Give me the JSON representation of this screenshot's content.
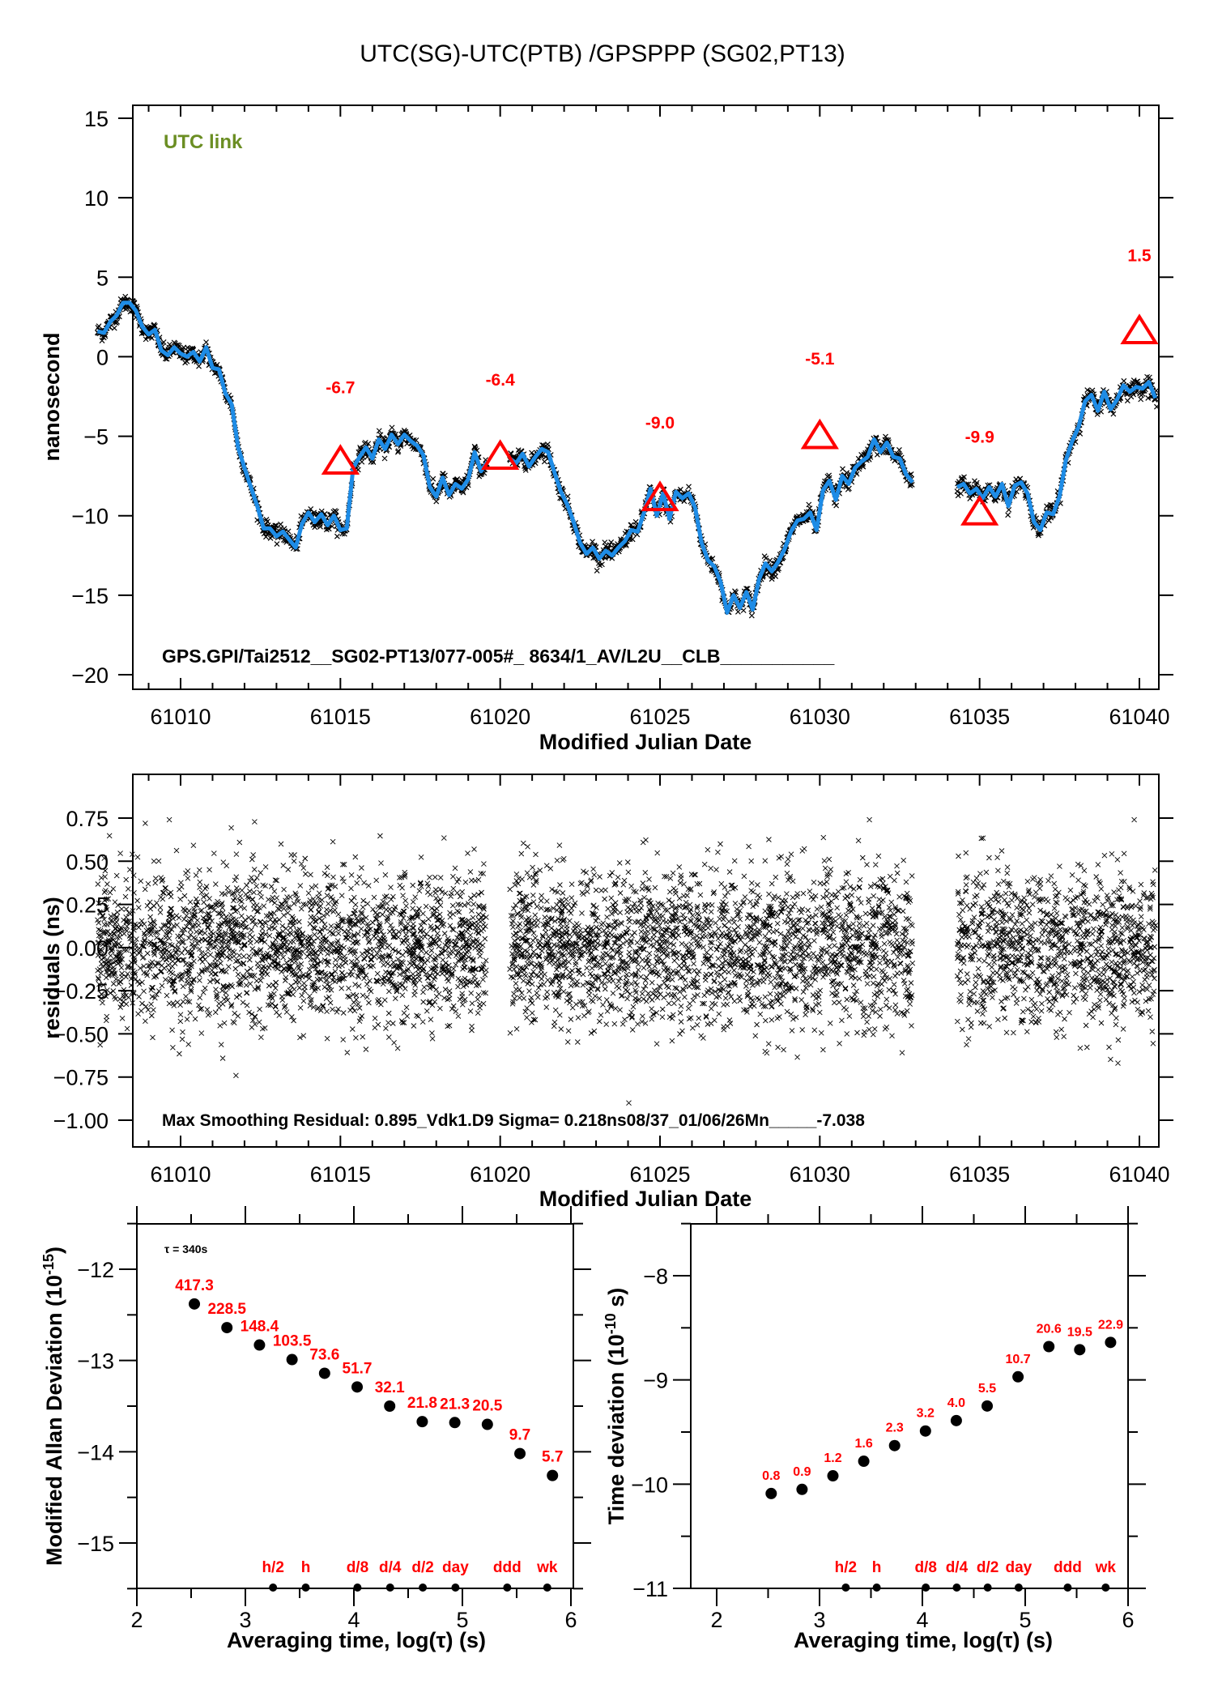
{
  "page_title": "UTC(SG)-UTC(PTB)  /GPSPPP  (SG02,PT13)",
  "colors": {
    "smooth_line": "#1e8ce6",
    "raw_points": "#000000",
    "marker": "#ff0000",
    "link_label": "#6b8e23",
    "annotation": "#ff0000"
  },
  "chart_data": [
    {
      "id": "offset",
      "type": "line",
      "title": "UTC(SG)-UTC(PTB)  /GPSPPP  (SG02,PT13)",
      "xlabel": "Modified Julian Date",
      "ylabel": "nanosecond",
      "xlim": [
        61007.4,
        61040.9
      ],
      "ylim": [
        -21,
        16
      ],
      "xticks": [
        61010,
        61015,
        61020,
        61025,
        61030,
        61035,
        61040
      ],
      "yticks": [
        15,
        10,
        5,
        0,
        -5,
        -10,
        -15,
        -20
      ],
      "ytick_labels": [
        "15",
        "10",
        "5",
        "0",
        "−5",
        "−10",
        "−15",
        "−20"
      ],
      "link_label": "UTC link",
      "footer_annotation": "GPS.GPI/Tai2512__SG02-PT13/077-005#_  8634/1_AV/L2U__CLB___________",
      "series": [
        {
          "name": "smoothed",
          "segments": [
            [
              [
                61007.4,
                1.6
              ],
              [
                61007.6,
                1.5
              ],
              [
                61007.8,
                2.2
              ],
              [
                61008.0,
                2.6
              ],
              [
                61008.2,
                3.4
              ],
              [
                61008.4,
                3.4
              ],
              [
                61008.6,
                2.9
              ],
              [
                61008.8,
                1.9
              ],
              [
                61009.0,
                1.4
              ],
              [
                61009.2,
                1.7
              ],
              [
                61009.4,
                0.4
              ],
              [
                61009.6,
                0.1
              ],
              [
                61009.8,
                0.6
              ],
              [
                61010.0,
                0.2
              ],
              [
                61010.2,
                0.0
              ],
              [
                61010.4,
                0.3
              ],
              [
                61010.6,
                -0.3
              ],
              [
                61010.8,
                0.6
              ],
              [
                61011.0,
                -0.7
              ],
              [
                61011.2,
                -0.8
              ],
              [
                61011.4,
                -2.3
              ],
              [
                61011.6,
                -3.0
              ],
              [
                61011.8,
                -5.7
              ],
              [
                61012.0,
                -7.0
              ],
              [
                61012.2,
                -8.2
              ],
              [
                61012.4,
                -9.4
              ],
              [
                61012.6,
                -10.8
              ],
              [
                61012.8,
                -10.8
              ],
              [
                61013.0,
                -11.3
              ],
              [
                61013.2,
                -11.0
              ],
              [
                61013.4,
                -11.5
              ],
              [
                61013.6,
                -12.0
              ],
              [
                61013.8,
                -10.5
              ],
              [
                61014.0,
                -9.8
              ],
              [
                61014.2,
                -10.4
              ],
              [
                61014.4,
                -9.9
              ],
              [
                61014.6,
                -10.6
              ],
              [
                61014.8,
                -10.0
              ],
              [
                61015.0,
                -10.9
              ],
              [
                61015.2,
                -10.8
              ],
              [
                61015.4,
                -7.0
              ],
              [
                61015.6,
                -6.3
              ],
              [
                61015.8,
                -5.7
              ],
              [
                61016.0,
                -6.4
              ],
              [
                61016.2,
                -5.2
              ],
              [
                61016.4,
                -5.8
              ],
              [
                61016.6,
                -4.9
              ],
              [
                61016.8,
                -5.5
              ],
              [
                61017.0,
                -4.9
              ],
              [
                61017.2,
                -5.3
              ],
              [
                61017.4,
                -5.6
              ],
              [
                61017.6,
                -6.2
              ],
              [
                61017.8,
                -8.2
              ],
              [
                61018.0,
                -8.8
              ],
              [
                61018.2,
                -7.6
              ],
              [
                61018.4,
                -8.7
              ],
              [
                61018.6,
                -8.0
              ],
              [
                61018.8,
                -8.3
              ],
              [
                61019.0,
                -7.7
              ],
              [
                61019.2,
                -6.0
              ],
              [
                61019.4,
                -7.2
              ],
              [
                61019.6,
                -6.6
              ]
            ],
            [
              [
                61020.3,
                -6.4
              ],
              [
                61020.5,
                -6.7
              ],
              [
                61020.7,
                -6.1
              ],
              [
                61020.9,
                -6.9
              ],
              [
                61021.1,
                -6.3
              ],
              [
                61021.3,
                -5.8
              ],
              [
                61021.5,
                -6.0
              ],
              [
                61021.7,
                -7.3
              ],
              [
                61021.9,
                -8.5
              ],
              [
                61022.1,
                -9.3
              ],
              [
                61022.3,
                -10.4
              ],
              [
                61022.5,
                -11.7
              ],
              [
                61022.7,
                -12.4
              ],
              [
                61022.9,
                -12.0
              ],
              [
                61023.1,
                -12.7
              ],
              [
                61023.3,
                -12.2
              ],
              [
                61023.5,
                -12.5
              ],
              [
                61023.7,
                -12.0
              ],
              [
                61023.9,
                -11.6
              ],
              [
                61024.1,
                -10.9
              ],
              [
                61024.3,
                -11.0
              ],
              [
                61024.5,
                -9.8
              ],
              [
                61024.7,
                -8.3
              ],
              [
                61024.9,
                -10.0
              ],
              [
                61025.1,
                -8.6
              ],
              [
                61025.3,
                -10.2
              ],
              [
                61025.5,
                -8.5
              ],
              [
                61025.7,
                -8.9
              ],
              [
                61025.9,
                -8.6
              ],
              [
                61026.1,
                -9.5
              ],
              [
                61026.3,
                -11.7
              ],
              [
                61026.5,
                -12.8
              ],
              [
                61026.7,
                -13.2
              ],
              [
                61026.9,
                -14.2
              ],
              [
                61027.1,
                -16.1
              ],
              [
                61027.3,
                -15.0
              ],
              [
                61027.5,
                -15.8
              ],
              [
                61027.7,
                -14.8
              ],
              [
                61027.9,
                -15.9
              ],
              [
                61028.1,
                -14.0
              ],
              [
                61028.3,
                -13.0
              ],
              [
                61028.5,
                -13.5
              ],
              [
                61028.7,
                -12.9
              ],
              [
                61028.9,
                -12.1
              ],
              [
                61029.1,
                -11.0
              ],
              [
                61029.3,
                -10.3
              ],
              [
                61029.5,
                -10.2
              ],
              [
                61029.7,
                -9.8
              ],
              [
                61029.9,
                -10.9
              ],
              [
                61030.1,
                -8.4
              ],
              [
                61030.3,
                -7.8
              ],
              [
                61030.5,
                -9.0
              ],
              [
                61030.7,
                -7.5
              ],
              [
                61030.9,
                -8.0
              ],
              [
                61031.1,
                -7.0
              ],
              [
                61031.3,
                -6.6
              ],
              [
                61031.5,
                -6.3
              ],
              [
                61031.7,
                -5.2
              ],
              [
                61031.9,
                -6.0
              ],
              [
                61032.1,
                -5.4
              ],
              [
                61032.3,
                -6.3
              ],
              [
                61032.5,
                -6.4
              ],
              [
                61032.7,
                -7.4
              ],
              [
                61032.9,
                -7.9
              ]
            ],
            [
              [
                61034.3,
                -8.2
              ],
              [
                61034.5,
                -8.0
              ],
              [
                61034.7,
                -8.6
              ],
              [
                61034.9,
                -8.3
              ],
              [
                61035.1,
                -8.9
              ],
              [
                61035.3,
                -8.2
              ],
              [
                61035.5,
                -8.8
              ],
              [
                61035.7,
                -8.0
              ],
              [
                61035.9,
                -9.4
              ],
              [
                61036.1,
                -8.1
              ],
              [
                61036.3,
                -7.9
              ],
              [
                61036.5,
                -8.6
              ],
              [
                61036.7,
                -10.4
              ],
              [
                61036.9,
                -10.9
              ],
              [
                61037.1,
                -9.8
              ],
              [
                61037.3,
                -9.9
              ],
              [
                61037.5,
                -8.8
              ],
              [
                61037.7,
                -6.5
              ],
              [
                61037.9,
                -5.3
              ],
              [
                61038.1,
                -4.4
              ],
              [
                61038.3,
                -2.8
              ],
              [
                61038.5,
                -2.4
              ],
              [
                61038.7,
                -3.4
              ],
              [
                61038.9,
                -2.2
              ],
              [
                61039.1,
                -3.3
              ],
              [
                61039.3,
                -2.7
              ],
              [
                61039.5,
                -1.8
              ],
              [
                61039.7,
                -2.2
              ],
              [
                61039.9,
                -1.9
              ],
              [
                61040.1,
                -2.0
              ],
              [
                61040.3,
                -1.6
              ],
              [
                61040.5,
                -2.6
              ],
              [
                61040.7,
                -3.9
              ],
              [
                61040.9,
                -2.5
              ]
            ]
          ]
        },
        {
          "name": "reference_markers",
          "points": [
            {
              "x": 61015.0,
              "y": -6.7,
              "label": "-6.7"
            },
            {
              "x": 61020.0,
              "y": -6.4,
              "label": "-6.4"
            },
            {
              "x": 61025.0,
              "y": -9.0,
              "label": "-9.0"
            },
            {
              "x": 61030.0,
              "y": -5.1,
              "label": "-5.1"
            },
            {
              "x": 61035.0,
              "y": -9.9,
              "label": "-9.9"
            },
            {
              "x": 61040.0,
              "y": 1.5,
              "label": "1.5"
            }
          ]
        }
      ]
    },
    {
      "id": "residuals",
      "type": "scatter",
      "xlabel": "Modified Julian Date",
      "ylabel": "residuals (ns)",
      "xlim": [
        61007.4,
        61040.9
      ],
      "ylim": [
        -1.1,
        0.92
      ],
      "xticks": [
        61010,
        61015,
        61020,
        61025,
        61030,
        61035,
        61040
      ],
      "yticks": [
        0.75,
        0.5,
        0.25,
        0.0,
        -0.25,
        -0.5,
        -0.75,
        -1.0
      ],
      "ytick_labels": [
        "0.75",
        "0.50",
        "0.25",
        "0.00",
        "−0.25",
        "−0.50",
        "−0.75",
        "−1.00"
      ],
      "annotation": "Max Smoothing Residual: 0.895_Vdk1.D9  Sigma= 0.218ns08/37_01/06/26Mn_____-7.038",
      "sigma_ns": 0.218,
      "max_residual_ns": 0.895,
      "data_ranges": [
        [
          61007.4,
          61019.6
        ],
        [
          61020.3,
          61032.9
        ],
        [
          61034.3,
          61040.9
        ]
      ]
    },
    {
      "id": "mdev",
      "type": "scatter",
      "xlabel": "Averaging time, log(τ) (s)",
      "ylabel": "Modified Allan Deviation (10",
      "ylabel_sup": "-15",
      "ylabel_end": ")",
      "xlim": [
        2,
        6
      ],
      "ylim": [
        -15.5,
        -11.5
      ],
      "xticks": [
        2,
        3,
        4,
        5,
        6
      ],
      "yticks": [
        -12,
        -13,
        -14,
        -15
      ],
      "ytick_labels": [
        "−12",
        "−13",
        "−14",
        "−15"
      ],
      "tau0_label": "τ = 340s",
      "x": [
        2.53,
        2.83,
        3.13,
        3.43,
        3.73,
        4.03,
        4.33,
        4.63,
        4.93,
        5.23,
        5.53,
        5.83
      ],
      "y": [
        -12.38,
        -12.64,
        -12.83,
        -12.99,
        -13.14,
        -13.29,
        -13.5,
        -13.67,
        -13.68,
        -13.7,
        -14.02,
        -14.26
      ],
      "labels": [
        "417.3",
        "228.5",
        "148.4",
        "103.5",
        "73.6",
        "51.7",
        "32.1",
        "21.8",
        "21.3",
        "20.5",
        "9.7",
        "5.7"
      ],
      "period_marks": [
        {
          "label": "h/2",
          "x": 3.255
        },
        {
          "label": "h",
          "x": 3.556
        },
        {
          "label": "d/8",
          "x": 4.033
        },
        {
          "label": "d/4",
          "x": 4.334
        },
        {
          "label": "d/2",
          "x": 4.635
        },
        {
          "label": "day",
          "x": 4.936
        },
        {
          "label": "ddd",
          "x": 5.413
        },
        {
          "label": "wk",
          "x": 5.782
        }
      ]
    },
    {
      "id": "tdev",
      "type": "scatter",
      "xlabel": "Averaging time, log(τ) (s)",
      "ylabel": "Time deviation (10",
      "ylabel_sup": "-10",
      "ylabel_end": " s)",
      "xlim": [
        1.75,
        6
      ],
      "ylim": [
        -11,
        -7.5
      ],
      "xticks": [
        2,
        3,
        4,
        5,
        6
      ],
      "yticks": [
        -8,
        -9,
        -10,
        -11
      ],
      "ytick_labels": [
        "−8",
        "−9",
        "−10",
        "−11"
      ],
      "x": [
        2.53,
        2.83,
        3.13,
        3.43,
        3.73,
        4.03,
        4.33,
        4.63,
        4.93,
        5.23,
        5.53,
        5.83
      ],
      "y": [
        -10.09,
        -10.05,
        -9.92,
        -9.78,
        -9.63,
        -9.49,
        -9.39,
        -9.25,
        -8.97,
        -8.68,
        -8.71,
        -8.64
      ],
      "labels": [
        "0.8",
        "0.9",
        "1.2",
        "1.6",
        "2.3",
        "3.2",
        "4.0",
        "5.5",
        "10.7",
        "20.6",
        "19.5",
        "22.9"
      ],
      "period_marks": [
        {
          "label": "h/2",
          "x": 3.255
        },
        {
          "label": "h",
          "x": 3.556
        },
        {
          "label": "d/8",
          "x": 4.033
        },
        {
          "label": "d/4",
          "x": 4.334
        },
        {
          "label": "d/2",
          "x": 4.635
        },
        {
          "label": "day",
          "x": 4.936
        },
        {
          "label": "ddd",
          "x": 5.413
        },
        {
          "label": "wk",
          "x": 5.782
        }
      ]
    }
  ]
}
